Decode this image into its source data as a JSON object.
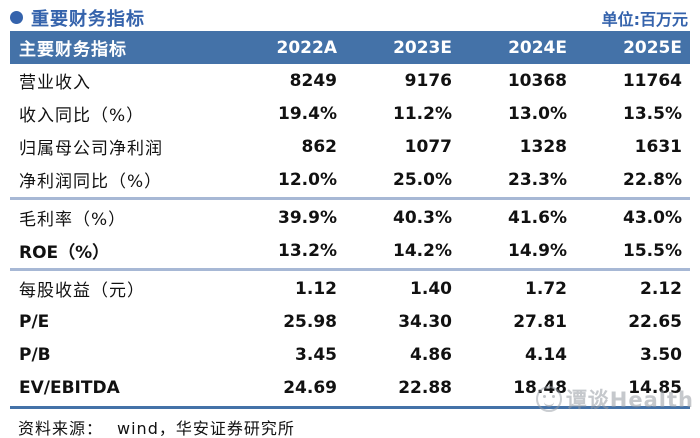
{
  "title": {
    "text": "重要财务指标",
    "unit": "单位:百万元"
  },
  "table": {
    "header": [
      "主要财务指标",
      "2022A",
      "2023E",
      "2024E",
      "2025E"
    ],
    "rows": [
      {
        "label": "营业收入",
        "latin": false,
        "values": [
          "8249",
          "9176",
          "10368",
          "11764"
        ]
      },
      {
        "label": "收入同比（%）",
        "latin": false,
        "values": [
          "19.4%",
          "11.2%",
          "13.0%",
          "13.5%"
        ]
      },
      {
        "label": "归属母公司净利润",
        "latin": false,
        "values": [
          "862",
          "1077",
          "1328",
          "1631"
        ]
      },
      {
        "label": "净利润同比（%）",
        "latin": false,
        "values": [
          "12.0%",
          "25.0%",
          "23.3%",
          "22.8%"
        ]
      },
      {
        "label": "毛利率（%）",
        "latin": false,
        "values": [
          "39.9%",
          "40.3%",
          "41.6%",
          "43.0%"
        ]
      },
      {
        "label": "ROE（%）",
        "latin": true,
        "values": [
          "13.2%",
          "14.2%",
          "14.9%",
          "15.5%"
        ]
      },
      {
        "label": "每股收益（元）",
        "latin": false,
        "values": [
          "1.12",
          "1.40",
          "1.72",
          "2.12"
        ]
      },
      {
        "label": "P/E",
        "latin": true,
        "values": [
          "25.98",
          "34.30",
          "27.81",
          "22.65"
        ]
      },
      {
        "label": "P/B",
        "latin": true,
        "values": [
          "3.45",
          "4.86",
          "4.14",
          "3.50"
        ]
      },
      {
        "label": "EV/EBITDA",
        "latin": true,
        "values": [
          "24.69",
          "22.88",
          "18.48",
          "14.85"
        ]
      }
    ]
  },
  "footer": {
    "source_label": "资料来源：",
    "source_text": "wind，华安证券研究所"
  },
  "watermark": {
    "text": "谭谈Health"
  },
  "colors": {
    "accent_blue": "#3563ac",
    "header_bg": "#4472a8",
    "separator_light": "#a7b8d5",
    "separator_dark": "#4472a8",
    "watermark_gray": "#969ba3"
  }
}
